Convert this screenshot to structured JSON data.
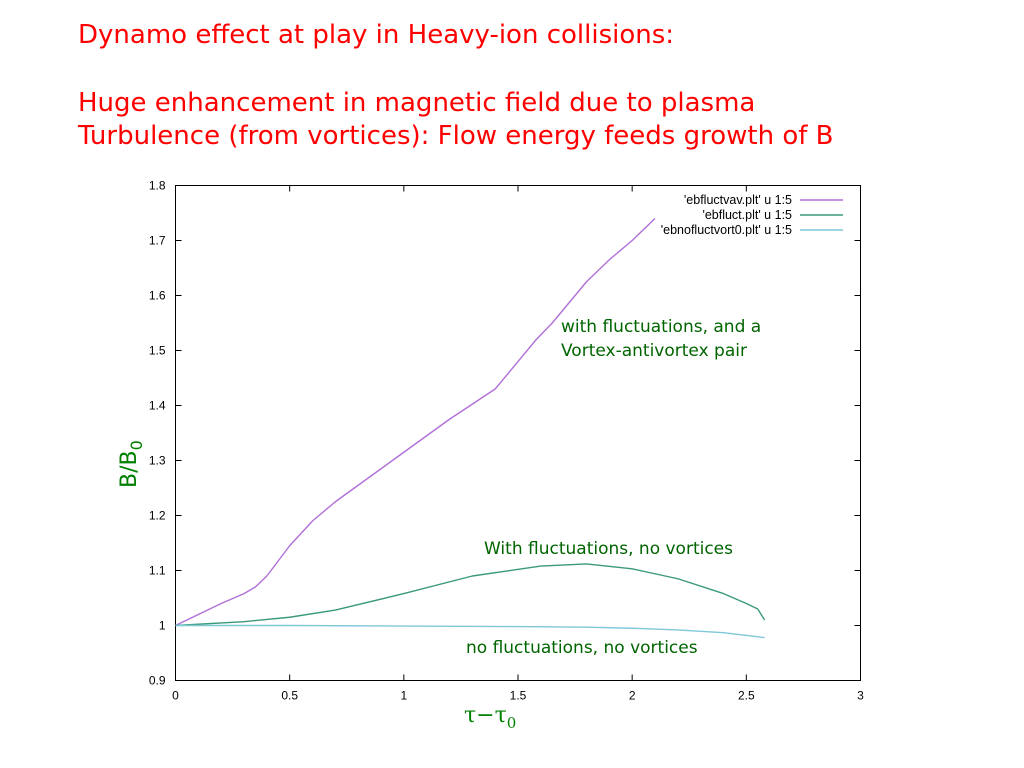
{
  "slide": {
    "title_line1": "Dynamo effect at play in Heavy-ion collisions:",
    "title_line2": "Huge enhancement in magnetic field due to plasma",
    "title_line3": "Turbulence (from vortices): Flow energy feeds growth of B"
  },
  "colors": {
    "title": "#ff0000",
    "annotation": "#006400",
    "axis_label": "#008000"
  },
  "chart_data": {
    "type": "line",
    "xlabel": "τ−τ",
    "xlabel_sub": "0",
    "ylabel": "B/B",
    "ylabel_sub": "0",
    "xlim": [
      0,
      3
    ],
    "ylim": [
      0.9,
      1.8
    ],
    "xticks": [
      0,
      0.5,
      1,
      1.5,
      2,
      2.5,
      3
    ],
    "xtick_labels": [
      "0",
      "0.5",
      "1",
      "1.5",
      "2",
      "2.5",
      "3"
    ],
    "yticks": [
      0.9,
      1.0,
      1.1,
      1.2,
      1.3,
      1.4,
      1.5,
      1.6,
      1.7,
      1.8
    ],
    "ytick_labels": [
      "0.9",
      "1",
      "1.1",
      "1.2",
      "1.3",
      "1.4",
      "1.5",
      "1.6",
      "1.7",
      "1.8"
    ],
    "legend_position": "top-right",
    "series": [
      {
        "name": "'ebfluctvav.plt' u 1:5",
        "color": "#b070d8",
        "x": [
          0,
          0.1,
          0.2,
          0.3,
          0.35,
          0.4,
          0.5,
          0.6,
          0.7,
          0.8,
          0.9,
          1.0,
          1.2,
          1.4,
          1.58,
          1.65,
          1.7,
          1.8,
          1.9,
          2.0,
          2.1
        ],
        "y": [
          1.0,
          1.02,
          1.04,
          1.058,
          1.07,
          1.09,
          1.145,
          1.19,
          1.225,
          1.255,
          1.285,
          1.315,
          1.375,
          1.43,
          1.52,
          1.55,
          1.575,
          1.625,
          1.665,
          1.7,
          1.74
        ]
      },
      {
        "name": "'ebfluct.plt' u 1:5",
        "color": "#3a9a78",
        "x": [
          0,
          0.3,
          0.5,
          0.7,
          1.0,
          1.3,
          1.6,
          1.8,
          2.0,
          2.2,
          2.4,
          2.5,
          2.55,
          2.58
        ],
        "y": [
          1.0,
          1.007,
          1.015,
          1.028,
          1.058,
          1.09,
          1.108,
          1.112,
          1.103,
          1.085,
          1.058,
          1.04,
          1.03,
          1.01
        ]
      },
      {
        "name": "'ebnofluctvort0.plt' u 1:5",
        "color": "#7fc8d8",
        "x": [
          0,
          0.5,
          1.0,
          1.5,
          1.8,
          2.0,
          2.2,
          2.4,
          2.58
        ],
        "y": [
          1.0,
          1.0,
          0.999,
          0.998,
          0.997,
          0.995,
          0.992,
          0.987,
          0.978
        ]
      }
    ],
    "annotations": [
      {
        "id": "vortex_line1",
        "text": "with fluctuations, and a"
      },
      {
        "id": "vortex_line2",
        "text": "Vortex-antivortex pair"
      },
      {
        "id": "fluct",
        "text": "With fluctuations, no vortices"
      },
      {
        "id": "nofluct",
        "text": "no fluctuations, no vortices"
      }
    ]
  }
}
